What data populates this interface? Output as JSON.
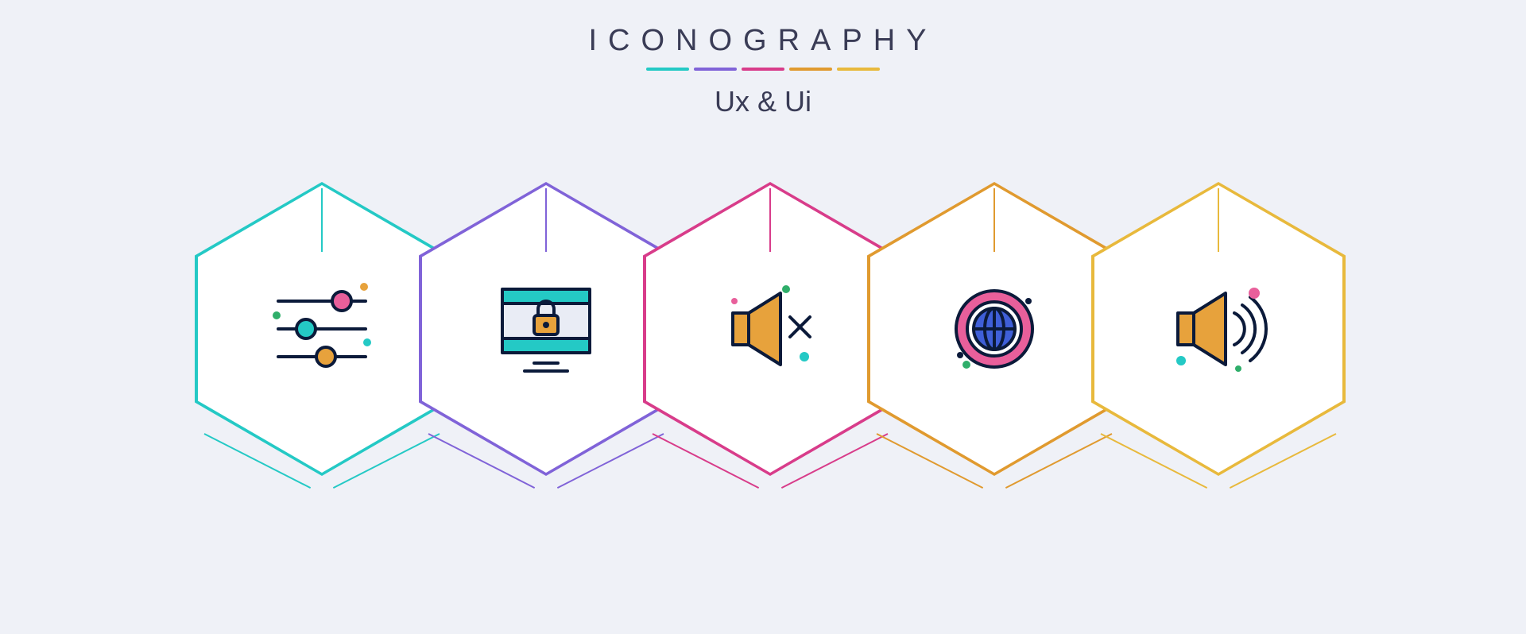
{
  "header": {
    "title": "ICONOGRAPHY",
    "subtitle": "Ux & Ui"
  },
  "palette": {
    "divider_colors": [
      "#24c9c5",
      "#8063d8",
      "#d83c8a",
      "#e09a2f",
      "#e8b93c"
    ]
  },
  "hexes": [
    {
      "id": "sliders",
      "accent": "#24c9c5",
      "icon_name": "sliders-icon"
    },
    {
      "id": "monitor-lock",
      "accent": "#8063d8",
      "icon_name": "monitor-lock-icon"
    },
    {
      "id": "speaker-mute",
      "accent": "#d83c8a",
      "icon_name": "speaker-mute-icon"
    },
    {
      "id": "globe",
      "accent": "#e09a2f",
      "icon_name": "globe-icon"
    },
    {
      "id": "speaker-sound",
      "accent": "#e8b93c",
      "icon_name": "speaker-sound-icon"
    }
  ],
  "icon_style": {
    "stroke": "#0b1a3a",
    "stroke_width": 4,
    "fill_orange": "#e7a23c",
    "fill_pink": "#e85f9b",
    "fill_teal": "#24c9c5",
    "fill_purple": "#8e74e0",
    "fill_blue": "#3f5fd8",
    "dot_green": "#2fae6a",
    "bg_light": "#e9ecf5"
  }
}
